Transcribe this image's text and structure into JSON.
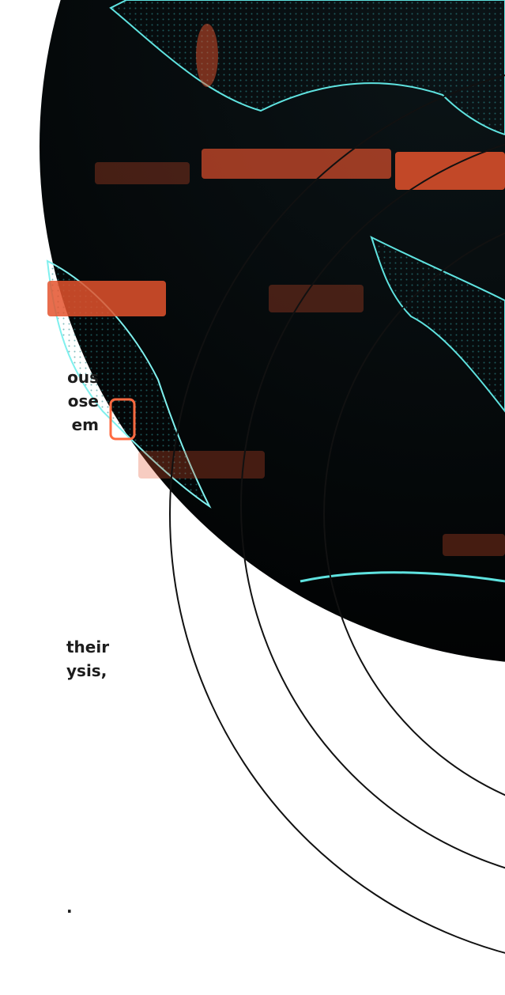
{
  "text_blocks": [
    {
      "lines": [
        "ous",
        "ose",
        "em"
      ]
    },
    {
      "lines": [
        "their",
        "ysis,"
      ]
    },
    {
      "lines": [
        "."
      ]
    }
  ]
}
